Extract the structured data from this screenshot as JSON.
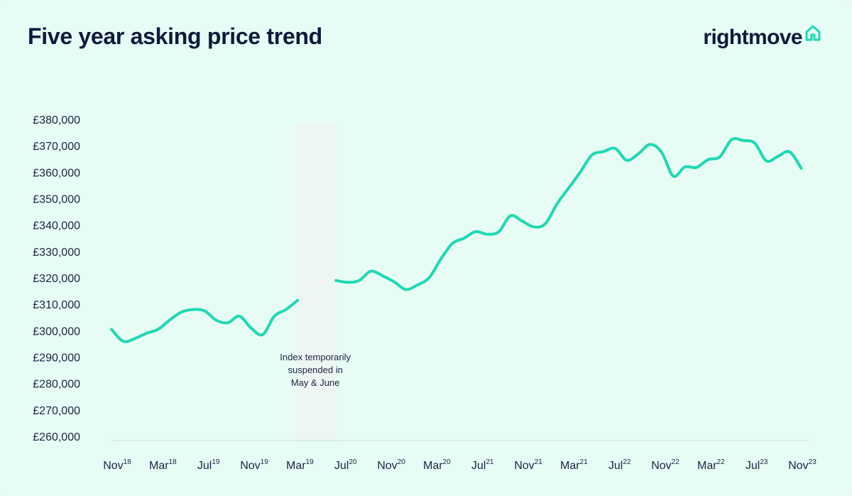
{
  "header": {
    "title": "Five year asking price trend",
    "logo_text": "rightmove",
    "logo_icon": "house-outline-icon"
  },
  "colors": {
    "background": "#e6fcf5",
    "line": "#1fd8b3",
    "suspended_band": "#eef6f3",
    "text": "#0e1a3c"
  },
  "chart_data": {
    "type": "line",
    "title": "Five year asking price trend",
    "xlabel": "",
    "ylabel": "",
    "ylim": [
      260000,
      380000
    ],
    "yticks": [
      {
        "value": 380000,
        "label": "£380,000"
      },
      {
        "value": 370000,
        "label": "£370,000"
      },
      {
        "value": 360000,
        "label": "£360,000"
      },
      {
        "value": 350000,
        "label": "£350,000"
      },
      {
        "value": 340000,
        "label": "£340,000"
      },
      {
        "value": 330000,
        "label": "£330,000"
      },
      {
        "value": 320000,
        "label": "£320,000"
      },
      {
        "value": 310000,
        "label": "£310,000"
      },
      {
        "value": 300000,
        "label": "£300,000"
      },
      {
        "value": 290000,
        "label": "£290,000"
      },
      {
        "value": 280000,
        "label": "£280,000"
      },
      {
        "value": 270000,
        "label": "£270,000"
      },
      {
        "value": 260000,
        "label": "£260,000"
      }
    ],
    "xticks": [
      {
        "month": "Nov",
        "year": "18"
      },
      {
        "month": "Mar",
        "year": "18"
      },
      {
        "month": "Jul",
        "year": "19"
      },
      {
        "month": "Nov",
        "year": "19"
      },
      {
        "month": "Mar",
        "year": "19"
      },
      {
        "month": "Jul",
        "year": "20"
      },
      {
        "month": "Nov",
        "year": "20"
      },
      {
        "month": "Mar",
        "year": "20"
      },
      {
        "month": "Jul",
        "year": "21"
      },
      {
        "month": "Nov",
        "year": "21"
      },
      {
        "month": "Mar",
        "year": "21"
      },
      {
        "month": "Jul",
        "year": "22"
      },
      {
        "month": "Nov",
        "year": "22"
      },
      {
        "month": "Mar",
        "year": "22"
      },
      {
        "month": "Jul",
        "year": "23"
      },
      {
        "month": "Nov",
        "year": "23"
      }
    ],
    "x_range": [
      0,
      60
    ],
    "series": [
      {
        "segments": [
          [
            {
              "x": 0,
              "y": 300500
            },
            {
              "x": 1,
              "y": 296000
            },
            {
              "x": 2,
              "y": 297000
            },
            {
              "x": 3,
              "y": 299000
            },
            {
              "x": 4,
              "y": 300500
            },
            {
              "x": 5,
              "y": 304000
            },
            {
              "x": 6,
              "y": 307000
            },
            {
              "x": 7,
              "y": 308000
            },
            {
              "x": 8,
              "y": 307500
            },
            {
              "x": 9,
              "y": 304000
            },
            {
              "x": 10,
              "y": 303000
            },
            {
              "x": 11,
              "y": 305500
            },
            {
              "x": 12,
              "y": 301000
            },
            {
              "x": 13,
              "y": 298500
            },
            {
              "x": 14,
              "y": 305500
            },
            {
              "x": 15,
              "y": 308000
            },
            {
              "x": 16,
              "y": 311500
            }
          ],
          [
            {
              "x": 19.3,
              "y": 319000
            },
            {
              "x": 20.3,
              "y": 318300
            },
            {
              "x": 21.3,
              "y": 319000
            },
            {
              "x": 22.3,
              "y": 322500
            },
            {
              "x": 23.3,
              "y": 320800
            },
            {
              "x": 24.3,
              "y": 318500
            },
            {
              "x": 25.3,
              "y": 315600
            },
            {
              "x": 26.3,
              "y": 317300
            },
            {
              "x": 27.3,
              "y": 320000
            },
            {
              "x": 28.3,
              "y": 327000
            },
            {
              "x": 29.3,
              "y": 333000
            },
            {
              "x": 30.3,
              "y": 335000
            },
            {
              "x": 31.3,
              "y": 337500
            },
            {
              "x": 32.3,
              "y": 336500
            },
            {
              "x": 33.3,
              "y": 337500
            },
            {
              "x": 34.3,
              "y": 343500
            },
            {
              "x": 35.3,
              "y": 341500
            },
            {
              "x": 36.3,
              "y": 339300
            },
            {
              "x": 37.3,
              "y": 340500
            },
            {
              "x": 38.3,
              "y": 348000
            },
            {
              "x": 39.3,
              "y": 354000
            },
            {
              "x": 40.3,
              "y": 360000
            },
            {
              "x": 41.3,
              "y": 366500
            },
            {
              "x": 42.3,
              "y": 367800
            },
            {
              "x": 43.3,
              "y": 369000
            },
            {
              "x": 44.3,
              "y": 364500
            },
            {
              "x": 45.3,
              "y": 367000
            },
            {
              "x": 46.3,
              "y": 370500
            },
            {
              "x": 47.3,
              "y": 367500
            },
            {
              "x": 48.3,
              "y": 358500
            },
            {
              "x": 49.3,
              "y": 362000
            },
            {
              "x": 50.3,
              "y": 361800
            },
            {
              "x": 51.3,
              "y": 364800
            },
            {
              "x": 52.3,
              "y": 365800
            },
            {
              "x": 53.3,
              "y": 372300
            },
            {
              "x": 54.3,
              "y": 372000
            },
            {
              "x": 55.3,
              "y": 371000
            },
            {
              "x": 56.3,
              "y": 364300
            },
            {
              "x": 57.3,
              "y": 366000
            },
            {
              "x": 58.3,
              "y": 367700
            },
            {
              "x": 59.3,
              "y": 361500
            }
          ]
        ]
      }
    ],
    "suspended_range": [
      16.0,
      19.3
    ],
    "annotation": [
      "Index temporarily",
      "suspended in",
      "May & June"
    ],
    "grid": false,
    "legend": "none"
  }
}
